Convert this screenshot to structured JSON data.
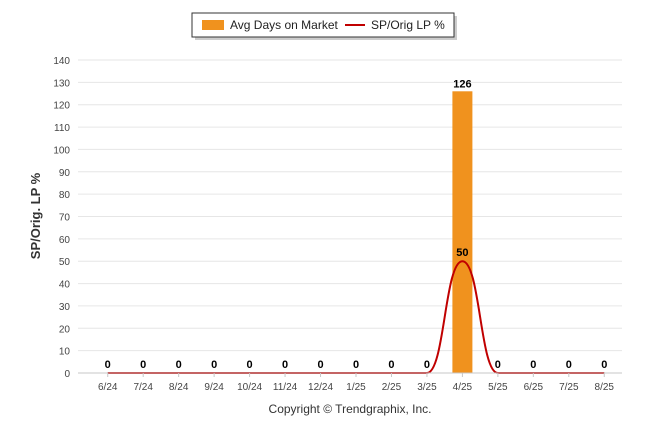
{
  "chart_data": {
    "type": "bar",
    "categories": [
      "6/24",
      "7/24",
      "8/24",
      "9/24",
      "10/24",
      "11/24",
      "12/24",
      "1/25",
      "2/25",
      "3/25",
      "4/25",
      "5/25",
      "6/25",
      "7/25",
      "8/25"
    ],
    "series": [
      {
        "name": "Avg Days on Market",
        "kind": "bar",
        "color": "#f0921e",
        "values": [
          0,
          0,
          0,
          0,
          0,
          0,
          0,
          0,
          0,
          0,
          126,
          0,
          0,
          0,
          0
        ]
      },
      {
        "name": "SP/Orig LP %",
        "kind": "line",
        "color": "#c00000",
        "values": [
          0,
          0,
          0,
          0,
          0,
          0,
          0,
          0,
          0,
          0,
          50,
          0,
          0,
          0,
          0
        ]
      }
    ],
    "ylabel": "SP/Orig. LP %",
    "ylim": [
      0,
      140
    ],
    "yticks": [
      0,
      10,
      20,
      30,
      40,
      50,
      60,
      70,
      80,
      90,
      100,
      110,
      120,
      130,
      140
    ],
    "grid": true,
    "legend_position": "top-center"
  },
  "footer": {
    "copyright": "Copyright © Trendgraphix, Inc."
  }
}
